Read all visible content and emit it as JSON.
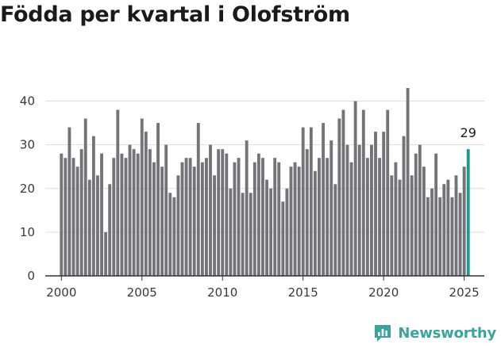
{
  "title": "Födda per kvartal i Olofström",
  "brand": {
    "name": "Newsworthy",
    "icon": "newsworthy-logo-icon"
  },
  "colors": {
    "bar": "#757378",
    "highlight": "#199b90",
    "grid": "#dddddd",
    "axis": "#333333",
    "brand": "#3aa59c"
  },
  "chart_data": {
    "type": "bar",
    "title": "Födda per kvartal i Olofström",
    "xlabel": "",
    "ylabel": "",
    "ylim": [
      0,
      45
    ],
    "yticks": [
      0,
      10,
      20,
      30,
      40
    ],
    "x_range": [
      1999,
      2026.25
    ],
    "xticks": [
      2000,
      2005,
      2010,
      2015,
      2020,
      2025
    ],
    "grid": "horizontal",
    "legend": "none",
    "start_year": 2000,
    "start_quarter": 1,
    "values": [
      28,
      27,
      34,
      27,
      25,
      29,
      36,
      22,
      32,
      23,
      28,
      10,
      21,
      27,
      38,
      28,
      27,
      30,
      29,
      28,
      36,
      33,
      29,
      26,
      35,
      25,
      30,
      19,
      18,
      23,
      26,
      27,
      27,
      25,
      35,
      26,
      27,
      30,
      23,
      29,
      29,
      28,
      20,
      26,
      27,
      19,
      31,
      19,
      26,
      28,
      27,
      22,
      20,
      27,
      26,
      17,
      20,
      25,
      26,
      25,
      34,
      29,
      34,
      24,
      27,
      35,
      27,
      31,
      21,
      36,
      38,
      30,
      26,
      40,
      30,
      38,
      27,
      30,
      33,
      27,
      33,
      38,
      23,
      26,
      22,
      32,
      43,
      23,
      28,
      30,
      25,
      18,
      20,
      28,
      18,
      21,
      22,
      18,
      23,
      19,
      25,
      29
    ],
    "highlight": {
      "label": "29",
      "value": 29
    }
  }
}
